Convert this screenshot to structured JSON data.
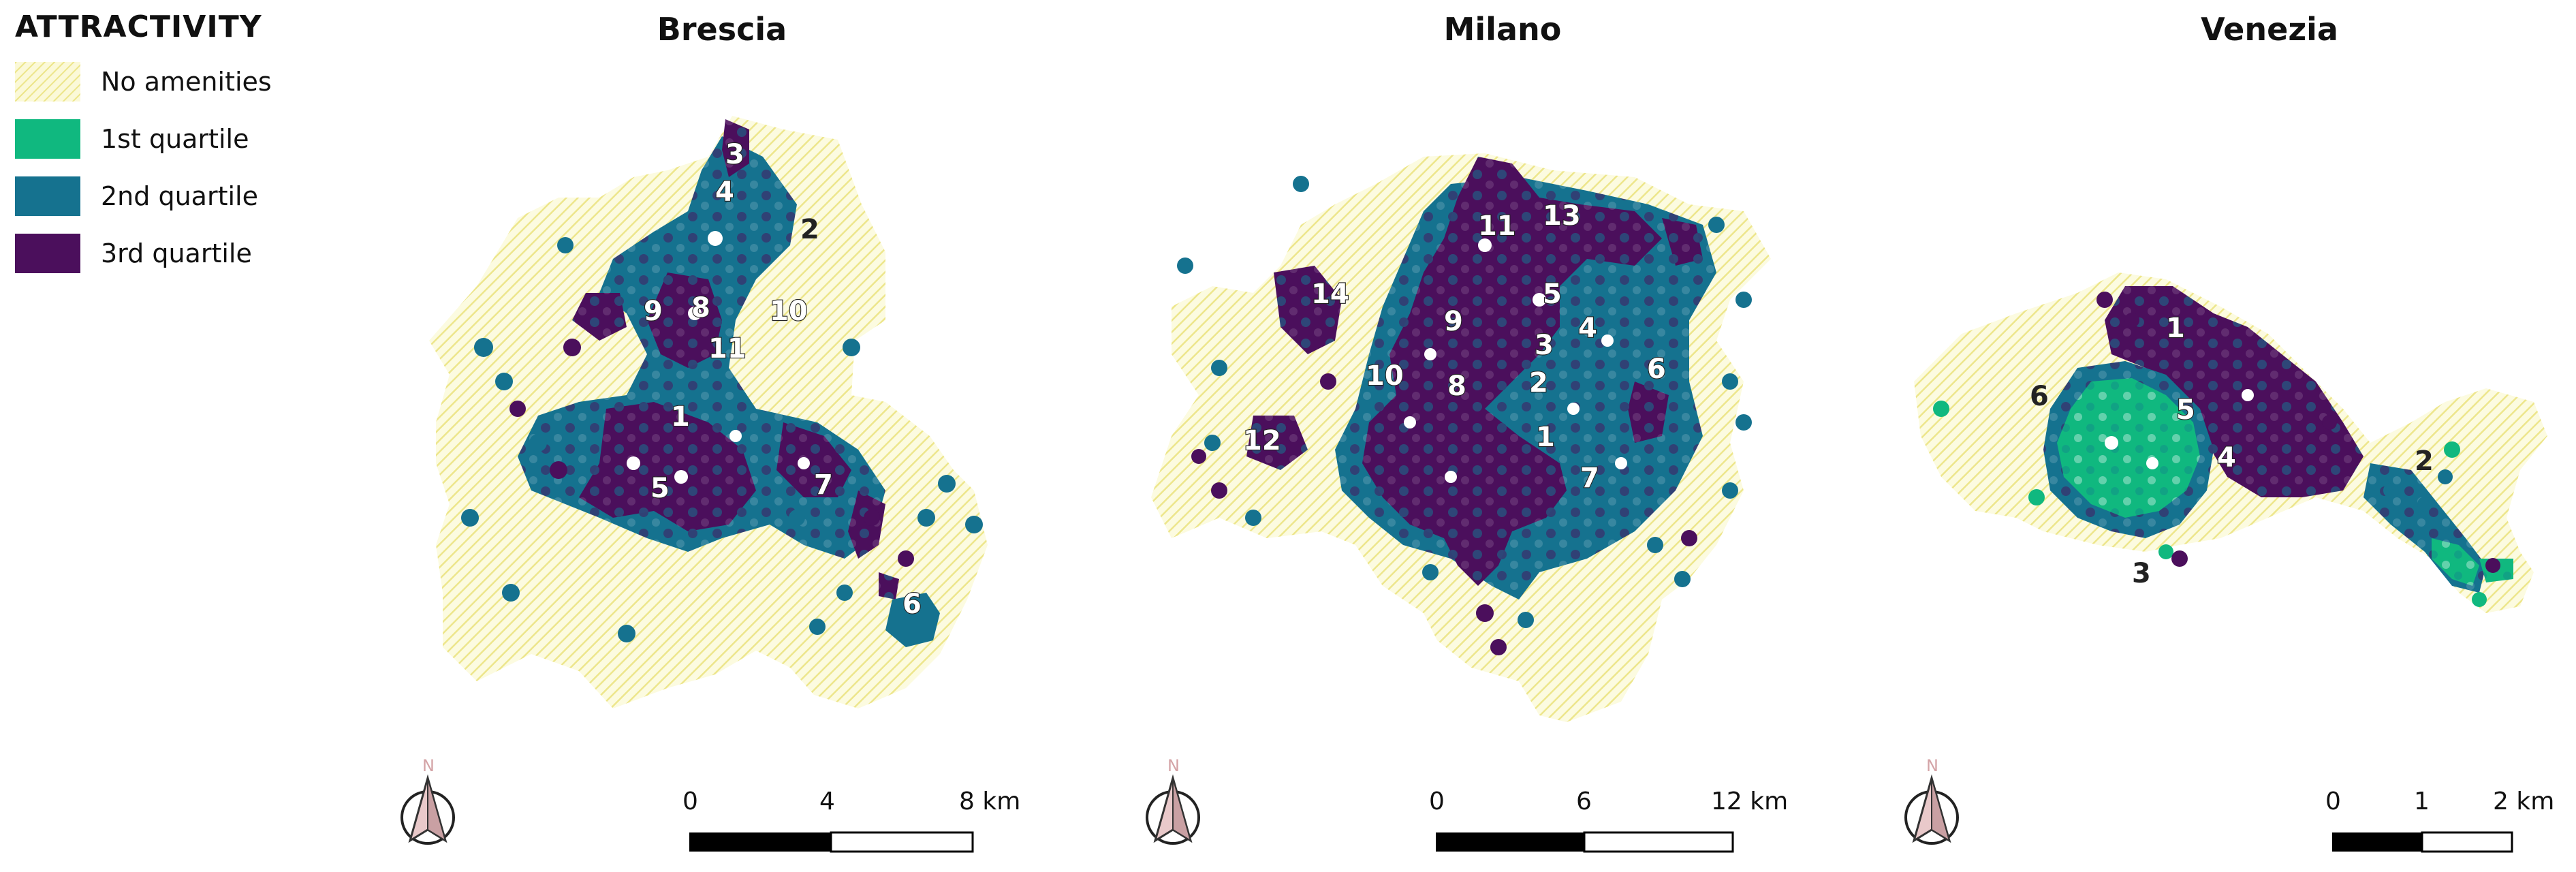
{
  "legend": {
    "title": "ATTRACTIVITY",
    "items": [
      {
        "label": "No amenities",
        "color": "#f3ef9c",
        "pattern": "hatch"
      },
      {
        "label": "1st quartile",
        "color": "#10b87f"
      },
      {
        "label": "2nd quartile",
        "color": "#15728f"
      },
      {
        "label": "3rd quartile",
        "color": "#4b0f5c"
      }
    ]
  },
  "maps": [
    {
      "city": "Brescia",
      "labels": [
        "3",
        "4",
        "2",
        "9",
        "8",
        "10",
        "11",
        "1",
        "5",
        "7",
        "6"
      ],
      "scalebar": {
        "ticks": [
          "0",
          "4",
          "8 km"
        ]
      },
      "north": "N"
    },
    {
      "city": "Milano",
      "labels": [
        "11",
        "13",
        "14",
        "9",
        "5",
        "3",
        "4",
        "6",
        "10",
        "8",
        "2",
        "12",
        "1",
        "7"
      ],
      "scalebar": {
        "ticks": [
          "0",
          "6",
          "12 km"
        ]
      },
      "north": "N"
    },
    {
      "city": "Venezia",
      "labels": [
        "1",
        "6",
        "5",
        "4",
        "2",
        "3"
      ],
      "scalebar": {
        "ticks": [
          "0",
          "1",
          "2 km"
        ]
      },
      "north": "N"
    }
  ]
}
